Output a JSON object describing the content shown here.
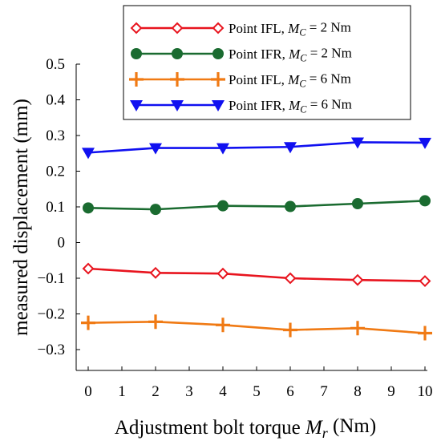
{
  "chart_data": {
    "type": "line",
    "xlabel": {
      "prefix": "Adjustment bolt torque ",
      "sym": "M",
      "sub": "r",
      "suffix": " (Nm)"
    },
    "ylabel": "measured displacement (mm)",
    "xlim": [
      0,
      10
    ],
    "ylim": [
      -0.35,
      0.5
    ],
    "xticks": [
      0,
      1,
      2,
      3,
      4,
      5,
      6,
      7,
      8,
      9,
      10
    ],
    "yticks": [
      0.5,
      0.4,
      0.3,
      0.2,
      0.1,
      0,
      -0.1,
      -0.2,
      -0.3
    ],
    "ytick_labels": [
      "0.5",
      "0.4",
      "0.3",
      "0.2",
      "0.1",
      "0",
      "−0.1",
      "−0.2",
      "−0.3"
    ],
    "grid": false,
    "legend_position": "top-right",
    "x": [
      0,
      2,
      4,
      6,
      8,
      10
    ],
    "series": [
      {
        "name": {
          "prefix": "Point IFL, ",
          "sym": "M",
          "sub": "C",
          "suffix": " = 2 Nm"
        },
        "marker": "diamond-open",
        "color": "#e8141e",
        "values": [
          -0.073,
          -0.085,
          -0.087,
          -0.1,
          -0.105,
          -0.108
        ]
      },
      {
        "name": {
          "prefix": "Point IFR, ",
          "sym": "M",
          "sub": "C",
          "suffix": " = 2 Nm"
        },
        "marker": "circle",
        "color": "#1a6b30",
        "values": [
          0.097,
          0.093,
          0.103,
          0.101,
          0.109,
          0.117
        ]
      },
      {
        "name": {
          "prefix": "Point IFL, ",
          "sym": "M",
          "sub": "C",
          "suffix": " = 6 Nm"
        },
        "marker": "plus",
        "color": "#f07a14",
        "values": [
          -0.225,
          -0.222,
          -0.231,
          -0.245,
          -0.24,
          -0.254
        ]
      },
      {
        "name": {
          "prefix": "Point IFR, ",
          "sym": "M",
          "sub": "C",
          "suffix": " = 6 Nm"
        },
        "marker": "triangle-down",
        "color": "#1010f0",
        "values": [
          0.252,
          0.265,
          0.265,
          0.268,
          0.281,
          0.28
        ]
      }
    ]
  }
}
